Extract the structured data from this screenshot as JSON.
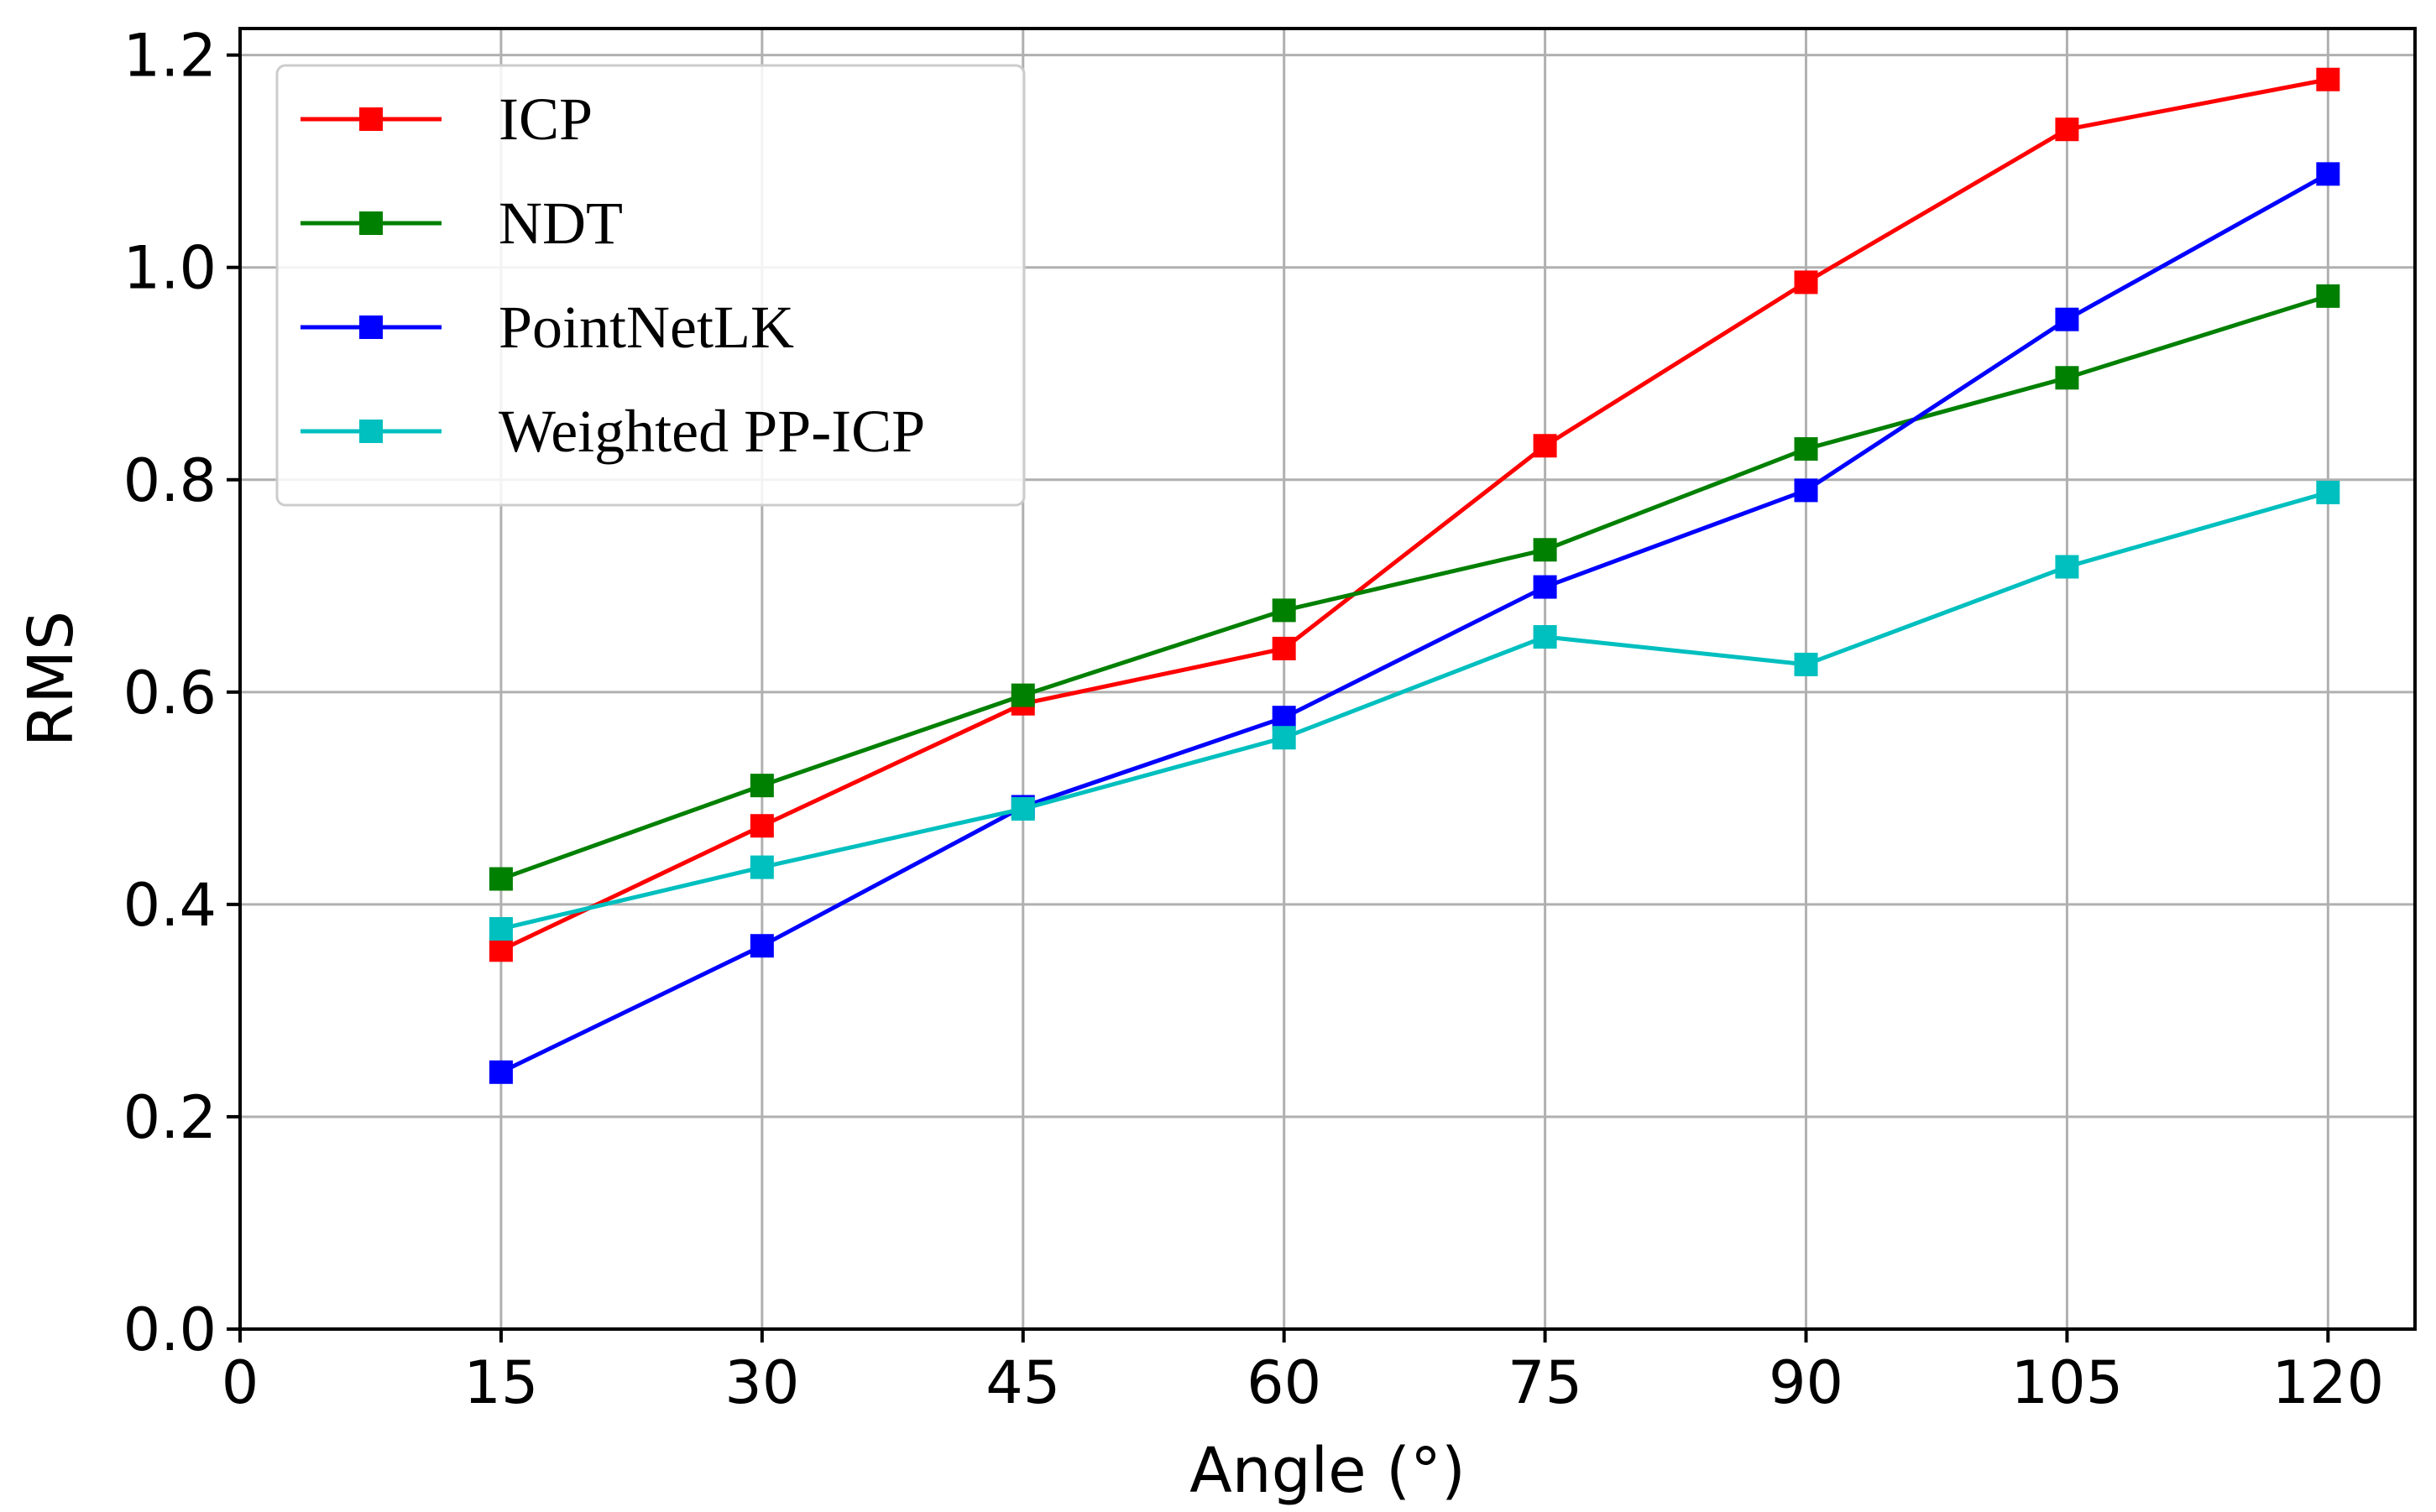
{
  "chart_data": {
    "type": "line",
    "title": "",
    "xlabel": "Angle (°)",
    "ylabel": "RMS",
    "x": [
      15,
      30,
      45,
      60,
      75,
      90,
      105,
      120
    ],
    "xlim": [
      0,
      125
    ],
    "ylim": [
      0,
      1.225
    ],
    "xticks": [
      0,
      15,
      30,
      45,
      60,
      75,
      90,
      105,
      120
    ],
    "xtick_labels": [
      "0",
      "15",
      "30",
      "45",
      "60",
      "75",
      "90",
      "105",
      "120"
    ],
    "yticks": [
      0,
      0.2,
      0.4,
      0.6,
      0.8,
      1.0,
      1.2
    ],
    "ytick_labels": [
      "0.0",
      "0.2",
      "0.4",
      "0.6",
      "0.8",
      "1.0",
      "1.2"
    ],
    "grid": true,
    "legend_position": "top-left",
    "marker": "square",
    "series": [
      {
        "name": "ICP",
        "color": "#ff0000",
        "values": [
          0.357,
          0.474,
          0.589,
          0.641,
          0.832,
          0.986,
          1.13,
          1.177
        ]
      },
      {
        "name": "NDT",
        "color": "#008000",
        "values": [
          0.424,
          0.512,
          0.597,
          0.677,
          0.734,
          0.829,
          0.896,
          0.973
        ]
      },
      {
        "name": "PointNetLK",
        "color": "#0000ff",
        "values": [
          0.242,
          0.361,
          0.492,
          0.576,
          0.699,
          0.79,
          0.951,
          1.088
        ]
      },
      {
        "name": "Weighted PP-ICP",
        "color": "#00bfbf",
        "values": [
          0.377,
          0.435,
          0.49,
          0.557,
          0.652,
          0.626,
          0.718,
          0.788
        ]
      }
    ]
  }
}
